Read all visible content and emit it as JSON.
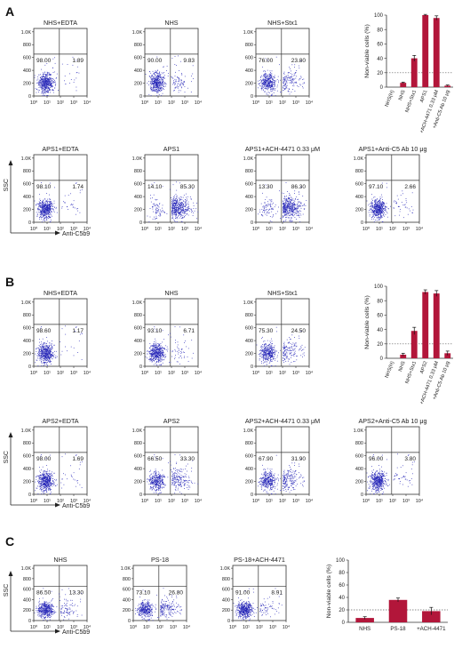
{
  "panels": [
    {
      "letter": "A",
      "plots": [
        {
          "title": "NHS+EDTA",
          "q_left": "98.00",
          "q_right": "1.89"
        },
        {
          "title": "NHS",
          "q_left": "90.00",
          "q_right": "9.83"
        },
        {
          "title": "NHS+Stx1",
          "q_left": "76.00",
          "q_right": "23.80"
        },
        {
          "title": "APS1+EDTA",
          "q_left": "98.10",
          "q_right": "1.74"
        },
        {
          "title": "APS1",
          "q_left": "14.10",
          "q_right": "85.30"
        },
        {
          "title": "APS1+ACH-4471 0.33 μM",
          "q_left": "13.30",
          "q_right": "86.30"
        },
        {
          "title": "APS1+Anti-C5 Ab 10 μg",
          "q_left": "97.10",
          "q_right": "2.66"
        }
      ]
    },
    {
      "letter": "B",
      "plots": [
        {
          "title": "NHS+EDTA",
          "q_left": "98.60",
          "q_right": "1.17"
        },
        {
          "title": "NHS",
          "q_left": "93.10",
          "q_right": "6.71"
        },
        {
          "title": "NHS+Stx1",
          "q_left": "75.30",
          "q_right": "24.50"
        },
        {
          "title": "APS2+EDTA",
          "q_left": "98.00",
          "q_right": "1.69"
        },
        {
          "title": "APS2",
          "q_left": "66.50",
          "q_right": "33.30"
        },
        {
          "title": "APS2+ACH-4471 0.33 μM",
          "q_left": "67.90",
          "q_right": "31.90"
        },
        {
          "title": "APS2+Anti-C5 Ab 10 μg",
          "q_left": "96.00",
          "q_right": "3.80"
        }
      ]
    },
    {
      "letter": "C",
      "plots": [
        {
          "title": "NHS",
          "q_left": "86.50",
          "q_right": "13.30"
        },
        {
          "title": "PS-18",
          "q_left": "73.10",
          "q_right": "26.80"
        },
        {
          "title": "PS-18+ACH-4471",
          "q_left": "91.00",
          "q_right": "8.91"
        }
      ]
    }
  ],
  "flow_axes": {
    "y_ticks": [
      "0",
      "200",
      "400",
      "600",
      "800",
      "1.0K"
    ],
    "x_ticks": [
      "10⁰",
      "10¹",
      "10²",
      "10³",
      "10⁴"
    ],
    "xlabel": "Anti-C5b9",
    "ylabel": "SSC"
  },
  "colors": {
    "bar": "#b2163a",
    "dots": "#2a2ab8",
    "ref_line": "#666666"
  },
  "chart_data": [
    {
      "type": "bar",
      "panel": "A",
      "categories": [
        "NHS(H)",
        "NHS",
        "NHS+Stx1",
        "APS1",
        "+ACH-4471 0.33 μM",
        "+Anti-C5 Ab 10 μg"
      ],
      "values": [
        0,
        6,
        40,
        100,
        96,
        2
      ],
      "errors": [
        0,
        1,
        4,
        1,
        3,
        1
      ],
      "ylabel": "Non-viable cells (%)",
      "yticks": [
        "0",
        "20",
        "40",
        "60",
        "80",
        "100"
      ],
      "ylim": [
        0,
        100
      ],
      "reference_line": 20
    },
    {
      "type": "bar",
      "panel": "B",
      "categories": [
        "NHS(H)",
        "NHS",
        "NHS+Stx1",
        "APS2",
        "+ACH-4471 0.33 μM",
        "+Anti-C5 Ab 10 μg"
      ],
      "values": [
        0,
        5,
        38,
        92,
        90,
        7
      ],
      "errors": [
        0,
        2,
        5,
        3,
        4,
        3
      ],
      "ylabel": "Non-viable cells (%)",
      "yticks": [
        "0",
        "20",
        "40",
        "60",
        "80",
        "100"
      ],
      "ylim": [
        0,
        100
      ],
      "reference_line": 20
    },
    {
      "type": "bar",
      "panel": "C",
      "categories": [
        "NHS",
        "PS-18",
        "+ACH-4471"
      ],
      "values": [
        7,
        36,
        18
      ],
      "errors": [
        2,
        3,
        6
      ],
      "ylabel": "Non-viable cells (%)",
      "yticks": [
        "0",
        "20",
        "40",
        "60",
        "80",
        "100"
      ],
      "ylim": [
        0,
        100
      ],
      "reference_line": 20
    }
  ]
}
